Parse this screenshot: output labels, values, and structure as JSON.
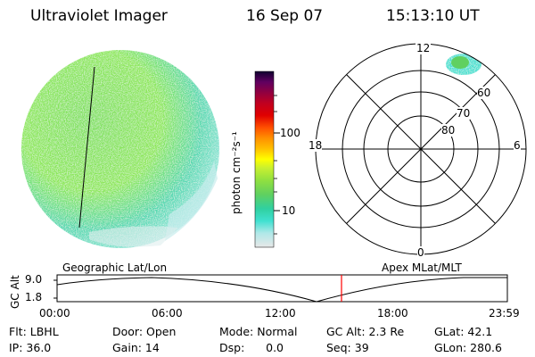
{
  "header": {
    "instrument": "Ultraviolet Imager",
    "date": "16 Sep 07",
    "time": "15:13:10 UT"
  },
  "colorbar": {
    "label": "photon cm⁻²s⁻¹",
    "ticks": [
      "100",
      "10"
    ],
    "scale": "log",
    "colors": [
      "#e8e8e8",
      "#b0e8e8",
      "#40e0d0",
      "#30d0a0",
      "#60d060",
      "#90e040",
      "#c8f030",
      "#ffff00",
      "#ffc000",
      "#ff9000",
      "#ff5000",
      "#e00000",
      "#c00020",
      "#900040",
      "#600060",
      "#300050",
      "#100030"
    ]
  },
  "polar": {
    "labels": {
      "top": "12",
      "bottom": "0",
      "left": "18",
      "right": "6"
    },
    "rings": [
      "80",
      "70",
      "60"
    ]
  },
  "timeline": {
    "label_left": "Geographic Lat/Lon",
    "label_right": "Apex MLat/MLT",
    "axis_title": "GC Alt",
    "y_ticks": [
      "9.0",
      "1.8"
    ],
    "x_ticks": [
      "00:00",
      "06:00",
      "12:00",
      "18:00",
      "23:59"
    ],
    "marker_time": "15:13",
    "marker_color": "#ff0000"
  },
  "info": {
    "flt": "Flt: LBHL",
    "door": "Door: Open",
    "mode": "Mode: Normal",
    "gcalt": "GC Alt: 2.3 Re",
    "glat": "GLat:  42.1",
    "ip": "IP: 36.0",
    "gain": "Gain: 14",
    "dsp": "Dsp:      0.0",
    "seq": "Seq: 39",
    "glon": "GLon: 280.6"
  }
}
